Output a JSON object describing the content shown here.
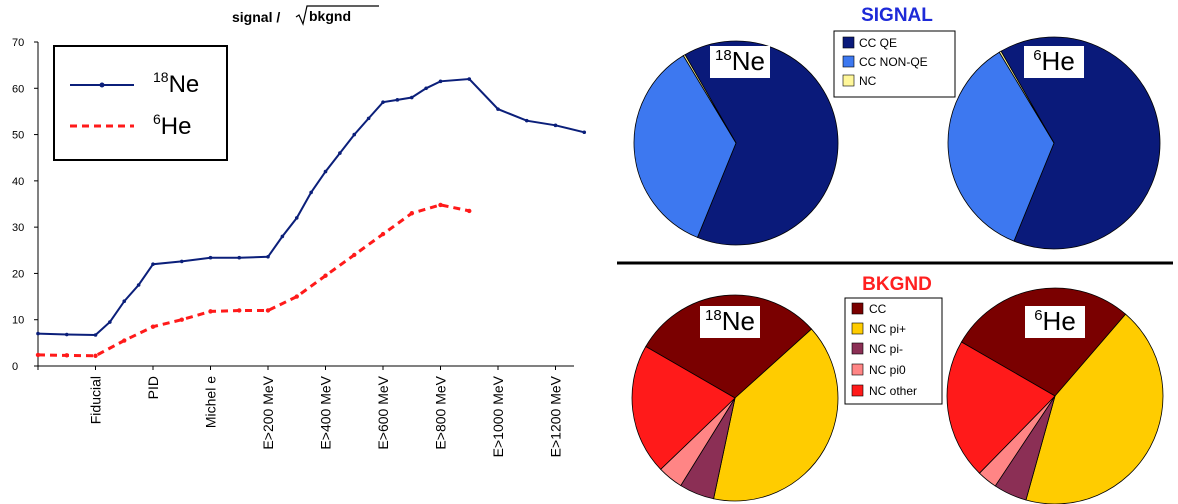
{
  "colors": {
    "ne18_line": "#0b1f7a",
    "he6_line": "#ff1a1a",
    "signal_title": "#1e2ad8",
    "bkgnd_title": "#ff2020",
    "divider": "#000000",
    "cc_qe": "#0a1a7a",
    "cc_nonqe": "#3d78f0",
    "nc_signal": "#fff79a",
    "cc_bkg": "#7a0000",
    "nc_pi_plus": "#ffcc00",
    "nc_pi_minus": "#8b2f55",
    "nc_pi0": "#ff8585",
    "nc_other": "#ff1a1a"
  },
  "chart_data": [
    {
      "type": "line",
      "title_left": "signal / ",
      "title_sqrt": "bkgnd",
      "categories": [
        "",
        "Fiducial",
        "PID",
        "Michel e",
        "E>200 MeV",
        "E>400 MeV",
        "E>600 MeV",
        "E>800 MeV",
        "E>1000 MeV",
        "E>1200 MeV"
      ],
      "ylim": [
        0,
        70
      ],
      "yticks": [
        "0",
        "10",
        "20",
        "30",
        "40",
        "50",
        "60",
        "70"
      ],
      "ytick_values": [
        0,
        10,
        20,
        30,
        40,
        50,
        60,
        70
      ],
      "legend": {
        "ne": {
          "sup": "18",
          "label": "Ne"
        },
        "he": {
          "sup": "6",
          "label": "He"
        }
      },
      "series": [
        {
          "key": "ne18",
          "x": [
            0,
            0.5,
            1,
            1.25,
            1.5,
            1.75,
            2,
            2.5,
            3,
            3.5,
            4,
            4.25,
            4.5,
            4.75,
            5,
            5.25,
            5.5,
            5.75,
            6,
            6.25,
            6.5,
            6.75,
            7,
            7.5,
            8,
            8.5,
            9,
            9.5
          ],
          "y": [
            7,
            6.8,
            6.7,
            9.5,
            14,
            17.5,
            22,
            22.6,
            23.4,
            23.4,
            23.6,
            28,
            32,
            37.5,
            42,
            46,
            50,
            53.5,
            57,
            57.5,
            58,
            60,
            61.5,
            62,
            55.5,
            53,
            52,
            50.5
          ]
        },
        {
          "key": "he6",
          "x": [
            0,
            0.5,
            1,
            1.5,
            2,
            2.5,
            3,
            3.5,
            4,
            4.5,
            5,
            5.5,
            6,
            6.5,
            7,
            7.5
          ],
          "y": [
            2.4,
            2.3,
            2.2,
            5.5,
            8.5,
            10,
            11.8,
            12,
            12,
            15,
            19.5,
            24,
            28.5,
            33,
            34.8,
            33.5
          ]
        }
      ]
    },
    {
      "type": "pie",
      "group": "SIGNAL",
      "label_sup": "18",
      "label": "Ne",
      "slices": [
        {
          "name": "CC QE",
          "value": 64.5
        },
        {
          "name": "CC NON-QE",
          "value": 35.2
        },
        {
          "name": "NC",
          "value": 0.3
        }
      ]
    },
    {
      "type": "pie",
      "group": "SIGNAL",
      "label_sup": "6",
      "label": "He",
      "slices": [
        {
          "name": "CC QE",
          "value": 64.5
        },
        {
          "name": "CC NON-QE",
          "value": 35.2
        },
        {
          "name": "NC",
          "value": 0.3
        }
      ]
    },
    {
      "type": "pie",
      "group": "BKGND",
      "label_sup": "18",
      "label": "Ne",
      "slices": [
        {
          "name": "CC",
          "value": 30
        },
        {
          "name": "NC pi+",
          "value": 40
        },
        {
          "name": "NC pi-",
          "value": 5.5
        },
        {
          "name": "NC pi0",
          "value": 4
        },
        {
          "name": "NC other",
          "value": 20.5
        }
      ]
    },
    {
      "type": "pie",
      "group": "BKGND",
      "label_sup": "6",
      "label": "He",
      "slices": [
        {
          "name": "CC",
          "value": 28
        },
        {
          "name": "NC pi+",
          "value": 43
        },
        {
          "name": "NC pi-",
          "value": 5
        },
        {
          "name": "NC pi0",
          "value": 3
        },
        {
          "name": "NC other",
          "value": 21
        }
      ]
    }
  ],
  "signal_panel": {
    "title": "SIGNAL",
    "legend": [
      "CC QE",
      "CC NON-QE",
      "NC"
    ]
  },
  "bkgnd_panel": {
    "title": "BKGND",
    "legend": [
      "CC",
      "NC pi+",
      "NC pi-",
      "NC pi0",
      "NC other"
    ]
  }
}
